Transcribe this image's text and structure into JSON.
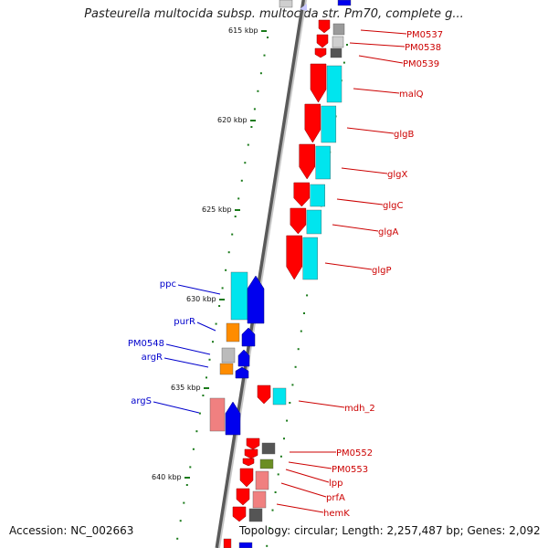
{
  "header": {
    "title": "Pasteurella multocida subsp. multocida str. Pm70, complete g..."
  },
  "footer": {
    "accession": "Accession: NC_002663",
    "topology": "Topology: circular; Length: 2,257,487 bp; Genes: 2,092"
  },
  "scale": {
    "ticks": [
      "615 kbp",
      "620 kbp",
      "625 kbp",
      "630 kbp",
      "635 kbp",
      "640 kbp"
    ]
  },
  "genes_forward": [
    "PM0537",
    "PM0538",
    "PM0539",
    "malQ",
    "glgB",
    "glgX",
    "glgC",
    "glgA",
    "glgP",
    "mdh_2",
    "PM0552",
    "PM0553",
    "lpp",
    "prfA",
    "hemK"
  ],
  "genes_reverse": [
    "ppc",
    "purR",
    "PM0548",
    "argR",
    "argS"
  ],
  "colors": {
    "forward_label": "#cc0000",
    "reverse_label": "#0000cc",
    "forward_strand": "#ff0000",
    "reverse_strand": "#0000ee",
    "cyan_category": "#00e5ee",
    "tick": "#1a7a1a",
    "backbone": "#888888"
  }
}
